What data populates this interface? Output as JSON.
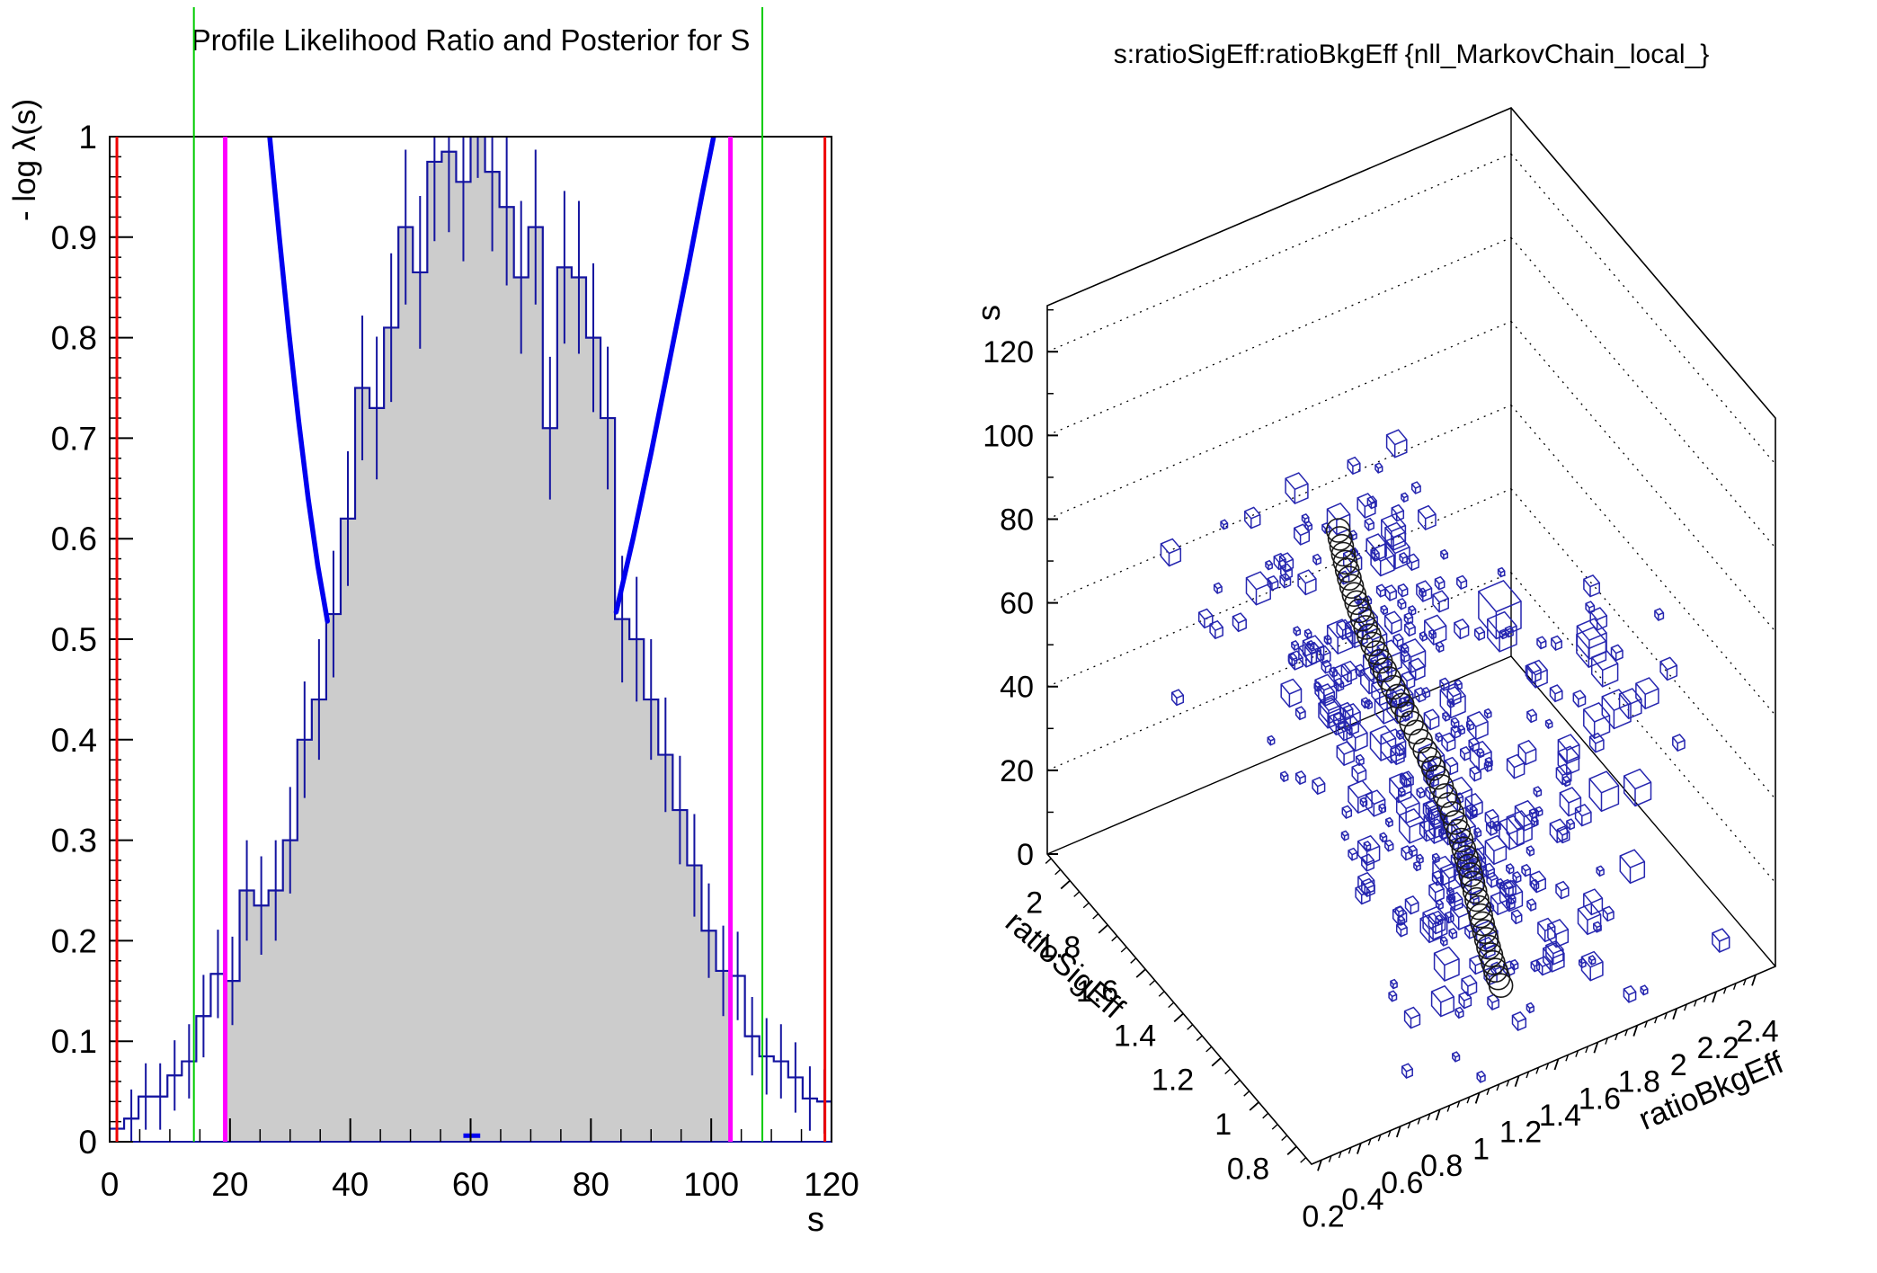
{
  "page": {
    "background": "#ffffff"
  },
  "chart_data": [
    {
      "id": "profile-likelihood",
      "type": "bar",
      "title": "Profile Likelihood Ratio and Posterior for S",
      "xlabel": "s",
      "ylabel": "- log λ(s)",
      "xlim": [
        0,
        120
      ],
      "ylim": [
        0,
        1
      ],
      "x_ticks": [
        0,
        20,
        40,
        60,
        80,
        100,
        120
      ],
      "x_minor_step": 5,
      "y_ticks": [
        0,
        0.1,
        0.2,
        0.3,
        0.4,
        0.5,
        0.6,
        0.7,
        0.8,
        0.9,
        1
      ],
      "y_minor_step": 0.02,
      "grid": false,
      "bin_start": 0,
      "bin_width": 2.4,
      "values": [
        0.013,
        0.023,
        0.045,
        0.045,
        0.066,
        0.08,
        0.125,
        0.167,
        0.16,
        0.25,
        0.235,
        0.25,
        0.3,
        0.4,
        0.44,
        0.525,
        0.62,
        0.75,
        0.73,
        0.81,
        0.91,
        0.865,
        0.975,
        0.985,
        0.955,
        1.04,
        0.965,
        0.93,
        0.86,
        0.91,
        0.71,
        0.87,
        0.86,
        0.8,
        0.72,
        0.52,
        0.5,
        0.44,
        0.385,
        0.33,
        0.275,
        0.21,
        0.17,
        0.165,
        0.105,
        0.085,
        0.08,
        0.064,
        0.043,
        0.04
      ],
      "errors": [
        0.027,
        0.029,
        0.033,
        0.033,
        0.035,
        0.037,
        0.041,
        0.044,
        0.044,
        0.05,
        0.049,
        0.05,
        0.053,
        0.058,
        0.06,
        0.063,
        0.067,
        0.072,
        0.071,
        0.074,
        0.077,
        0.076,
        0.079,
        0.08,
        0.079,
        0.081,
        0.079,
        0.078,
        0.076,
        0.077,
        0.071,
        0.076,
        0.076,
        0.074,
        0.071,
        0.063,
        0.062,
        0.06,
        0.057,
        0.054,
        0.051,
        0.047,
        0.045,
        0.044,
        0.039,
        0.038,
        0.037,
        0.035,
        0.032,
        0.032
      ],
      "shaded_range": [
        19.2,
        103.2
      ],
      "curve_left": [
        [
          26.6,
          1.0
        ],
        [
          28.2,
          0.9
        ],
        [
          29.8,
          0.805
        ],
        [
          31.4,
          0.718
        ],
        [
          33.0,
          0.64
        ],
        [
          34.6,
          0.573
        ],
        [
          36.2,
          0.518
        ]
      ],
      "curve_right": [
        [
          84.2,
          0.527
        ],
        [
          87.0,
          0.6
        ],
        [
          90.0,
          0.685
        ],
        [
          93.0,
          0.775
        ],
        [
          96.0,
          0.865
        ],
        [
          98.4,
          0.94
        ],
        [
          100.4,
          1.0
        ]
      ],
      "curve_min_dash": {
        "x1": 58.8,
        "x2": 61.6,
        "y": 0.006
      },
      "vlines": [
        {
          "name": "red-line-left",
          "x": 1.2,
          "color": "#ee0000",
          "width": 3,
          "span": "frame"
        },
        {
          "name": "green-line-left",
          "x": 14.0,
          "color": "#00cc00",
          "width": 2,
          "span": "full"
        },
        {
          "name": "magenta-line-left",
          "x": 19.2,
          "color": "#ff00ff",
          "width": 5,
          "span": "frame"
        },
        {
          "name": "magenta-line-right",
          "x": 103.2,
          "color": "#ff00ff",
          "width": 5,
          "span": "frame"
        },
        {
          "name": "green-line-right",
          "x": 108.5,
          "color": "#00cc00",
          "width": 2,
          "span": "full"
        },
        {
          "name": "red-line-right",
          "x": 118.9,
          "color": "#ee0000",
          "width": 3,
          "span": "frame"
        }
      ],
      "colors": {
        "hist_fill": "#cccccc",
        "hist_line": "#1414a0",
        "error_bars": "#1414a0",
        "curve": "#0000ef",
        "frame": "#000000",
        "text": "#000000"
      }
    },
    {
      "id": "markov-chain-scatter3d",
      "type": "scatter",
      "title": "s:ratioSigEff:ratioBkgEff {nll_MarkovChain_local_}",
      "axes": {
        "x": {
          "label": "ratioBkgEff",
          "min": 0.15,
          "max": 2.5,
          "tick_first": 0.2,
          "tick_step": 0.2,
          "tick_last": 2.4,
          "minor_step": 0.05
        },
        "y": {
          "label": "ratioSigEff",
          "min": 0.72,
          "max": 2.12,
          "tick_first": 0.8,
          "tick_step": 0.2,
          "tick_last": 2.0,
          "minor_step": 0.05
        },
        "z": {
          "label": "s",
          "min": 0,
          "max": 131,
          "tick_first": 0,
          "tick_step": 20,
          "tick_last": 120,
          "minor_step": 10
        }
      },
      "grid": "dotted-z-levels",
      "marker_color": "#2626b0",
      "circle_color": "#1a1a1a",
      "chain": {
        "count": 55,
        "radius": 13,
        "s_from": 74,
        "s_to": 7,
        "sig_from": 1.755,
        "sig_to": 0.93,
        "bkg_from": 1.275,
        "bkg_to": 1.35,
        "sig_wiggle": 0.03,
        "bkg_wiggle": 0.025
      },
      "cloud": {
        "count": 330,
        "seed": 42,
        "s_jitter": 22,
        "sig_jitter": 0.4,
        "bkg_jitter": 0.52,
        "size_min": 4.5,
        "size_max": 18,
        "s_clamp": [
          1,
          80
        ],
        "sig_clamp": [
          0.74,
          2.04
        ],
        "bkg_clamp": [
          0.34,
          2.05
        ]
      },
      "cluster2": {
        "count": 28,
        "seed": 7,
        "bkg_center": 2.02,
        "sig_center": 1.12,
        "s_center": 48,
        "bkg_spread": 0.34,
        "sig_spread": 0.26,
        "s_spread": 26,
        "size_min": 5,
        "size_max": 21
      },
      "extra_cubes": [
        {
          "bkg": 1.85,
          "sig": 1.5,
          "s": 57,
          "d": 30
        },
        {
          "bkg": 2.3,
          "sig": 0.8,
          "s": 6,
          "d": 12
        },
        {
          "bkg": 2.2,
          "sig": 1.38,
          "s": 62,
          "d": 11
        },
        {
          "bkg": 0.72,
          "sig": 1.82,
          "s": 58,
          "d": 9
        },
        {
          "bkg": 0.6,
          "sig": 1.9,
          "s": 40,
          "d": 8
        }
      ]
    }
  ]
}
